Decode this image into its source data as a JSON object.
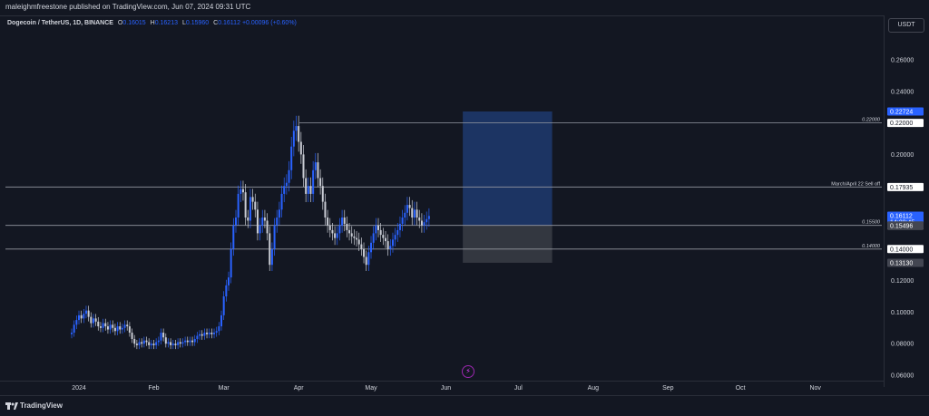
{
  "header": {
    "published": "maleighmfreestone published on TradingView.com, Jun 07, 2024 09:31 UTC"
  },
  "symbol": {
    "title": "Dogecoin / TetherUS, 1D, BINANCE",
    "o_label": "O",
    "o_value": "0.16015",
    "h_label": "H",
    "h_value": "0.16213",
    "l_label": "L",
    "l_value": "0.15960",
    "c_label": "C",
    "c_value": "0.16112",
    "change": "+0.00096 (+0.60%)"
  },
  "currency": "USDT",
  "footer": {
    "brand": "TradingView"
  },
  "icons": {
    "logo": "tradingview-logo-icon",
    "bolt": "lightning-icon"
  },
  "colors": {
    "background": "#131722",
    "bull": "#2962ff",
    "bear": "#c9ccd4",
    "target_zone": "#1e3a6e",
    "stop_zone": "#3a3d45",
    "line": "#9598a1"
  },
  "chart_data": {
    "type": "candlestick",
    "x_axis_labels": [
      "2024",
      "Feb",
      "Mar",
      "Apr",
      "May",
      "Jun",
      "Jul",
      "Aug",
      "Sep",
      "Oct",
      "Nov"
    ],
    "y_axis_labels": [
      "0.26000",
      "0.24000",
      "0.22000",
      "0.20000",
      "0.18000",
      "0.16000",
      "0.14000",
      "0.12000",
      "0.10000",
      "0.08000",
      "0.06000"
    ],
    "ylim": [
      0.06,
      0.275
    ],
    "horizontal_lines": [
      {
        "price": 0.22,
        "label": "0.22000",
        "tag": "0.22000"
      },
      {
        "price": 0.17935,
        "label": "March/April 22 Sell off",
        "tag": "0.17935"
      },
      {
        "price": 0.155,
        "label": "0.15500",
        "tag": "0.15500"
      },
      {
        "price": 0.14,
        "label": "0.14000",
        "tag": "0.14000"
      }
    ],
    "price_tags": {
      "target": "0.22724",
      "last_price": "0.16112",
      "countdown": "14:28:45",
      "entry": "0.15496",
      "stop": "0.13130"
    },
    "position": {
      "entry": 0.15496,
      "target": 0.22724,
      "stop": 0.1313,
      "start": "2024-06-08",
      "end": "2024-07-15"
    },
    "closes": [
      0.087,
      0.092,
      0.095,
      0.098,
      0.096,
      0.099,
      0.101,
      0.097,
      0.093,
      0.096,
      0.094,
      0.091,
      0.09,
      0.093,
      0.091,
      0.089,
      0.092,
      0.09,
      0.088,
      0.091,
      0.089,
      0.09,
      0.092,
      0.091,
      0.087,
      0.083,
      0.08,
      0.079,
      0.081,
      0.08,
      0.082,
      0.081,
      0.079,
      0.08,
      0.079,
      0.081,
      0.082,
      0.087,
      0.084,
      0.08,
      0.081,
      0.079,
      0.08,
      0.079,
      0.081,
      0.08,
      0.081,
      0.082,
      0.081,
      0.082,
      0.081,
      0.083,
      0.085,
      0.086,
      0.085,
      0.087,
      0.086,
      0.087,
      0.086,
      0.087,
      0.088,
      0.091,
      0.098,
      0.11,
      0.117,
      0.122,
      0.14,
      0.155,
      0.16,
      0.175,
      0.178,
      0.176,
      0.16,
      0.158,
      0.173,
      0.17,
      0.165,
      0.15,
      0.155,
      0.16,
      0.158,
      0.15,
      0.13,
      0.14,
      0.155,
      0.16,
      0.165,
      0.175,
      0.18,
      0.182,
      0.19,
      0.205,
      0.215,
      0.218,
      0.208,
      0.2,
      0.185,
      0.175,
      0.18,
      0.175,
      0.19,
      0.195,
      0.185,
      0.18,
      0.17,
      0.16,
      0.155,
      0.152,
      0.15,
      0.147,
      0.15,
      0.155,
      0.16,
      0.156,
      0.152,
      0.15,
      0.148,
      0.147,
      0.146,
      0.143,
      0.14,
      0.135,
      0.13,
      0.138,
      0.144,
      0.15,
      0.155,
      0.152,
      0.149,
      0.147,
      0.145,
      0.14,
      0.142,
      0.146,
      0.149,
      0.152,
      0.156,
      0.16,
      0.163,
      0.168,
      0.166,
      0.16,
      0.165,
      0.16,
      0.158,
      0.155,
      0.157,
      0.159,
      0.161
    ]
  }
}
